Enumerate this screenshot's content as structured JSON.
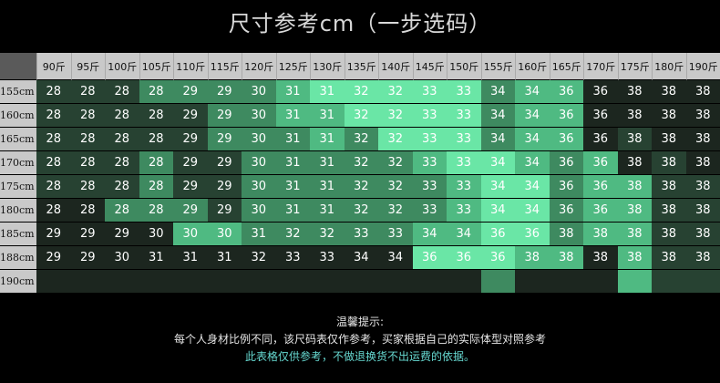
{
  "title": "尺寸参考cm（一步选码）",
  "table": {
    "weights": [
      "90斤",
      "95斤",
      "100斤",
      "105斤",
      "110斤",
      "115斤",
      "120斤",
      "125斤",
      "130斤",
      "135斤",
      "140斤",
      "145斤",
      "150斤",
      "155斤",
      "160斤",
      "165斤",
      "170斤",
      "175斤",
      "180斤",
      "190斤"
    ],
    "rows": [
      {
        "height": "155cm",
        "sizes": [
          "28",
          "28",
          "28",
          "28",
          "29",
          "29",
          "30",
          "31",
          "31",
          "32",
          "32",
          "33",
          "33",
          "34",
          "34",
          "36",
          "36",
          "38",
          "38",
          "38"
        ],
        "shades": [
          1,
          1,
          1,
          2,
          2,
          2,
          2,
          3,
          4,
          4,
          4,
          4,
          4,
          2,
          3,
          3,
          0,
          0,
          0,
          0
        ]
      },
      {
        "height": "160cm",
        "sizes": [
          "28",
          "28",
          "28",
          "28",
          "29",
          "29",
          "30",
          "31",
          "31",
          "32",
          "32",
          "33",
          "33",
          "34",
          "34",
          "36",
          "36",
          "38",
          "38",
          "38"
        ],
        "shades": [
          1,
          1,
          1,
          1,
          1,
          2,
          2,
          3,
          3,
          4,
          4,
          4,
          4,
          2,
          3,
          3,
          0,
          0,
          0,
          0
        ]
      },
      {
        "height": "165cm",
        "sizes": [
          "28",
          "28",
          "28",
          "28",
          "29",
          "29",
          "30",
          "31",
          "31",
          "32",
          "32",
          "33",
          "33",
          "34",
          "34",
          "36",
          "36",
          "38",
          "38",
          "38"
        ],
        "shades": [
          1,
          1,
          1,
          1,
          1,
          2,
          2,
          2,
          3,
          2,
          4,
          4,
          4,
          2,
          3,
          3,
          0,
          1,
          0,
          0
        ]
      },
      {
        "height": "170cm",
        "sizes": [
          "28",
          "28",
          "28",
          "28",
          "29",
          "29",
          "30",
          "31",
          "31",
          "32",
          "32",
          "33",
          "33",
          "34",
          "34",
          "36",
          "36",
          "38",
          "38",
          "38"
        ],
        "shades": [
          1,
          1,
          1,
          2,
          1,
          1,
          2,
          2,
          2,
          2,
          2,
          3,
          4,
          4,
          3,
          2,
          3,
          0,
          1,
          0
        ]
      },
      {
        "height": "175cm",
        "sizes": [
          "28",
          "28",
          "28",
          "28",
          "29",
          "29",
          "30",
          "31",
          "31",
          "32",
          "32",
          "33",
          "33",
          "34",
          "34",
          "36",
          "36",
          "38",
          "38",
          "38"
        ],
        "shades": [
          1,
          1,
          1,
          2,
          1,
          1,
          2,
          2,
          2,
          2,
          2,
          2,
          3,
          4,
          4,
          2,
          3,
          3,
          1,
          1
        ]
      },
      {
        "height": "180cm",
        "sizes": [
          "28",
          "28",
          "28",
          "28",
          "29",
          "29",
          "30",
          "31",
          "31",
          "32",
          "32",
          "33",
          "33",
          "34",
          "34",
          "36",
          "36",
          "38",
          "38",
          "38"
        ],
        "shades": [
          0,
          0,
          2,
          2,
          2,
          1,
          2,
          2,
          2,
          2,
          2,
          2,
          3,
          4,
          4,
          2,
          3,
          3,
          1,
          1
        ]
      },
      {
        "height": "185cm",
        "sizes": [
          "29",
          "29",
          "29",
          "30",
          "30",
          "30",
          "31",
          "32",
          "32",
          "33",
          "33",
          "34",
          "34",
          "36",
          "36",
          "38",
          "38",
          "38",
          "38",
          "38"
        ],
        "shades": [
          0,
          0,
          0,
          0,
          3,
          3,
          2,
          2,
          2,
          2,
          2,
          3,
          3,
          4,
          4,
          2,
          3,
          3,
          1,
          1
        ]
      },
      {
        "height": "188cm",
        "sizes": [
          "29",
          "29",
          "30",
          "31",
          "31",
          "31",
          "32",
          "33",
          "33",
          "34",
          "34",
          "36",
          "36",
          "36",
          "38",
          "38",
          "38",
          "38",
          "38",
          "38"
        ],
        "shades": [
          0,
          0,
          0,
          0,
          0,
          0,
          0,
          0,
          0,
          0,
          0,
          4,
          4,
          4,
          3,
          3,
          0,
          3,
          1,
          1
        ]
      },
      {
        "height": "190cm",
        "sizes": [
          "",
          "",
          "",
          "",
          "",
          "",
          "",
          "",
          "",
          "",
          "",
          "",
          "",
          "",
          "",
          "",
          "",
          "",
          "",
          ""
        ],
        "shades": [
          0,
          0,
          0,
          0,
          0,
          0,
          0,
          0,
          0,
          0,
          0,
          0,
          0,
          2,
          0,
          0,
          0,
          3,
          1,
          1
        ]
      }
    ],
    "shade_colors": [
      "#1c261f",
      "#274232",
      "#3e8a60",
      "#4fba82",
      "#6ae6a6"
    ]
  },
  "notes": {
    "heading": "温馨提示:",
    "line1": "每个人身材比例不同，该尺码表仅作参考，买家根据自己的实际体型对照参考",
    "line2": "此表格仅供参考，不做退换货不出运费的依据。"
  }
}
